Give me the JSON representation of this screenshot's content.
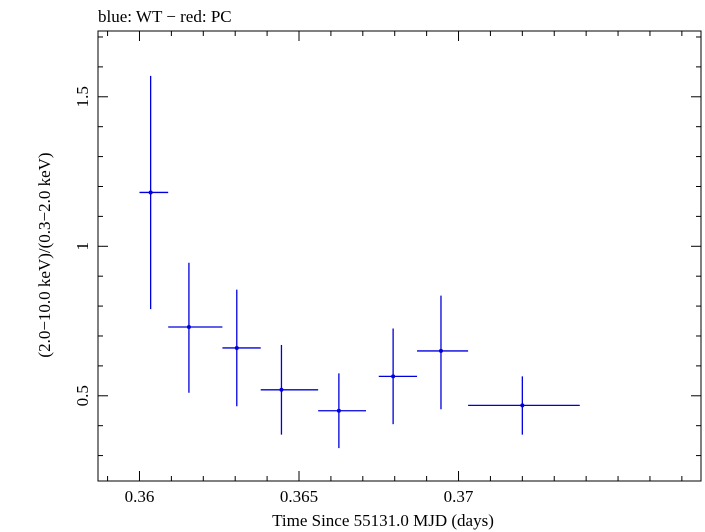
{
  "chart_data": {
    "type": "scatter",
    "title": "blue: WT − red: PC",
    "xlabel": "Time Since 55131.0 MJD (days)",
    "ylabel": "(2.0−10.0 keV)/(0.3−2.0 keV)",
    "xlim": [
      0.3587,
      0.3776
    ],
    "ylim": [
      0.215,
      1.72
    ],
    "x_ticks": [
      {
        "value": 0.36,
        "label": "0.36"
      },
      {
        "value": 0.365,
        "label": "0.365"
      },
      {
        "value": 0.37,
        "label": "0.37"
      }
    ],
    "y_ticks": [
      {
        "value": 0.5,
        "label": "0.5"
      },
      {
        "value": 1.0,
        "label": "1"
      },
      {
        "value": 1.5,
        "label": "1.5"
      }
    ],
    "x_minor_step": 0.001,
    "y_minor_step": 0.1,
    "series": [
      {
        "name": "WT",
        "color": "#0000dd",
        "points": [
          {
            "x": 0.36035,
            "xlo": 0.36,
            "xhi": 0.3609,
            "y": 1.18,
            "ylo": 0.79,
            "yhi": 1.57
          },
          {
            "x": 0.36155,
            "xlo": 0.3609,
            "xhi": 0.3626,
            "y": 0.73,
            "ylo": 0.51,
            "yhi": 0.945
          },
          {
            "x": 0.36305,
            "xlo": 0.3626,
            "xhi": 0.3638,
            "y": 0.66,
            "ylo": 0.465,
            "yhi": 0.855
          },
          {
            "x": 0.36445,
            "xlo": 0.3638,
            "xhi": 0.3656,
            "y": 0.52,
            "ylo": 0.37,
            "yhi": 0.67
          },
          {
            "x": 0.36625,
            "xlo": 0.3656,
            "xhi": 0.3671,
            "y": 0.45,
            "ylo": 0.325,
            "yhi": 0.575
          },
          {
            "x": 0.36795,
            "xlo": 0.3675,
            "xhi": 0.3687,
            "y": 0.565,
            "ylo": 0.405,
            "yhi": 0.725
          },
          {
            "x": 0.36945,
            "xlo": 0.3687,
            "xhi": 0.3703,
            "y": 0.65,
            "ylo": 0.455,
            "yhi": 0.835
          },
          {
            "x": 0.372,
            "xlo": 0.3703,
            "xhi": 0.3738,
            "y": 0.468,
            "ylo": 0.37,
            "yhi": 0.565
          }
        ]
      }
    ]
  }
}
